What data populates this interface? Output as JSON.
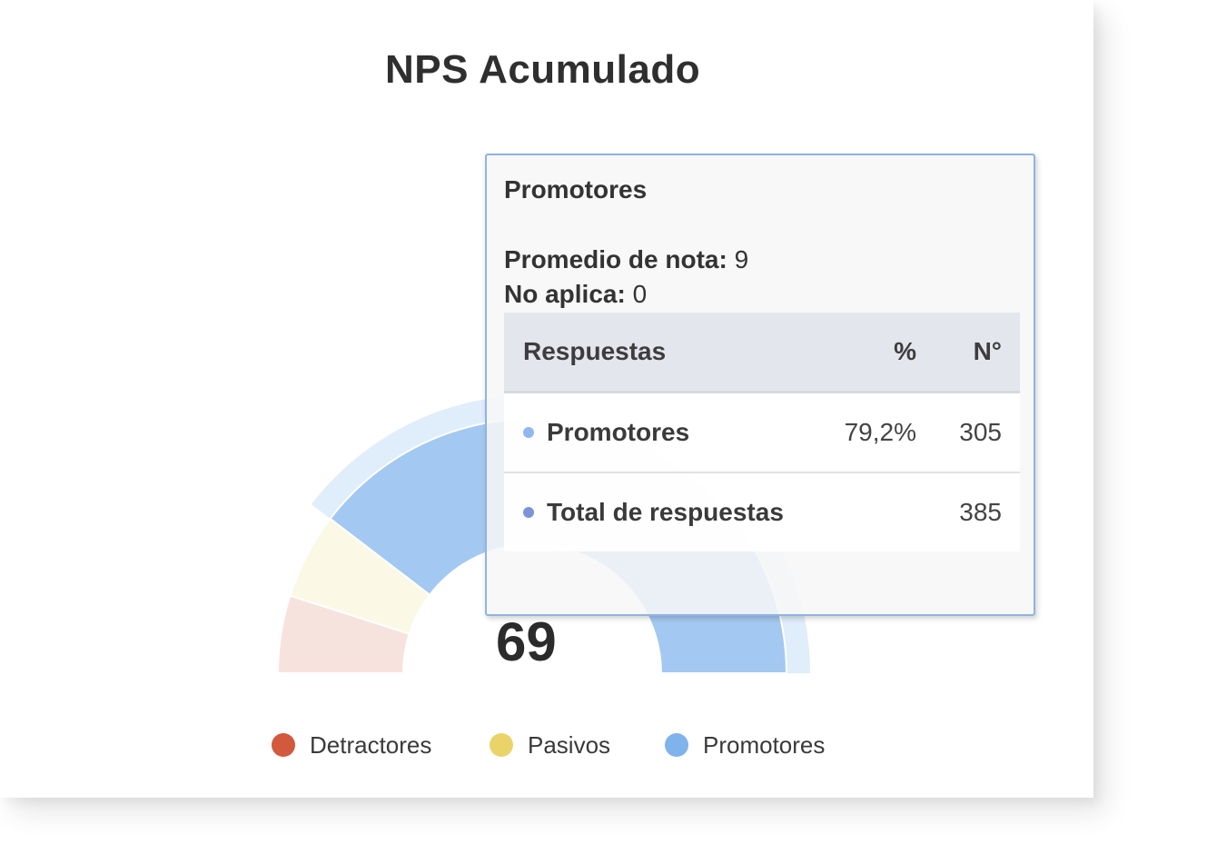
{
  "chart_data": {
    "type": "pie",
    "subtype": "semi-donut",
    "title": "NPS Acumulado",
    "nps_score": "69",
    "categories": [
      "Detractores",
      "Pasivos",
      "Promotores"
    ],
    "values": [
      38,
      42,
      305
    ],
    "percentages": [
      9.9,
      10.9,
      79.2
    ],
    "total": 385,
    "colors": {
      "Detractores": "#d2593c",
      "Pasivos": "#ead46a",
      "Promotores": "#7fb3ec"
    },
    "highlighted": "Promotores",
    "legend_position": "bottom",
    "legend": [
      {
        "label": "Detractores",
        "color": "#d2593c"
      },
      {
        "label": "Pasivos",
        "color": "#ead46a"
      },
      {
        "label": "Promotores",
        "color": "#7fb3ec"
      }
    ]
  },
  "tooltip": {
    "series_name": "Promotores",
    "average_label": "Promedio de nota:",
    "average_value": "9",
    "na_label": "No aplica:",
    "na_value": "0",
    "table": {
      "headers": {
        "name": "Respuestas",
        "pct": "%",
        "num": "N°"
      },
      "rows": [
        {
          "label": "Promotores",
          "pct": "79,2%",
          "num": "305",
          "dot_color": "#8fb8ee"
        },
        {
          "label": "Total de respuestas",
          "pct": "",
          "num": "385",
          "dot_color": "#7d93d8"
        }
      ]
    }
  }
}
